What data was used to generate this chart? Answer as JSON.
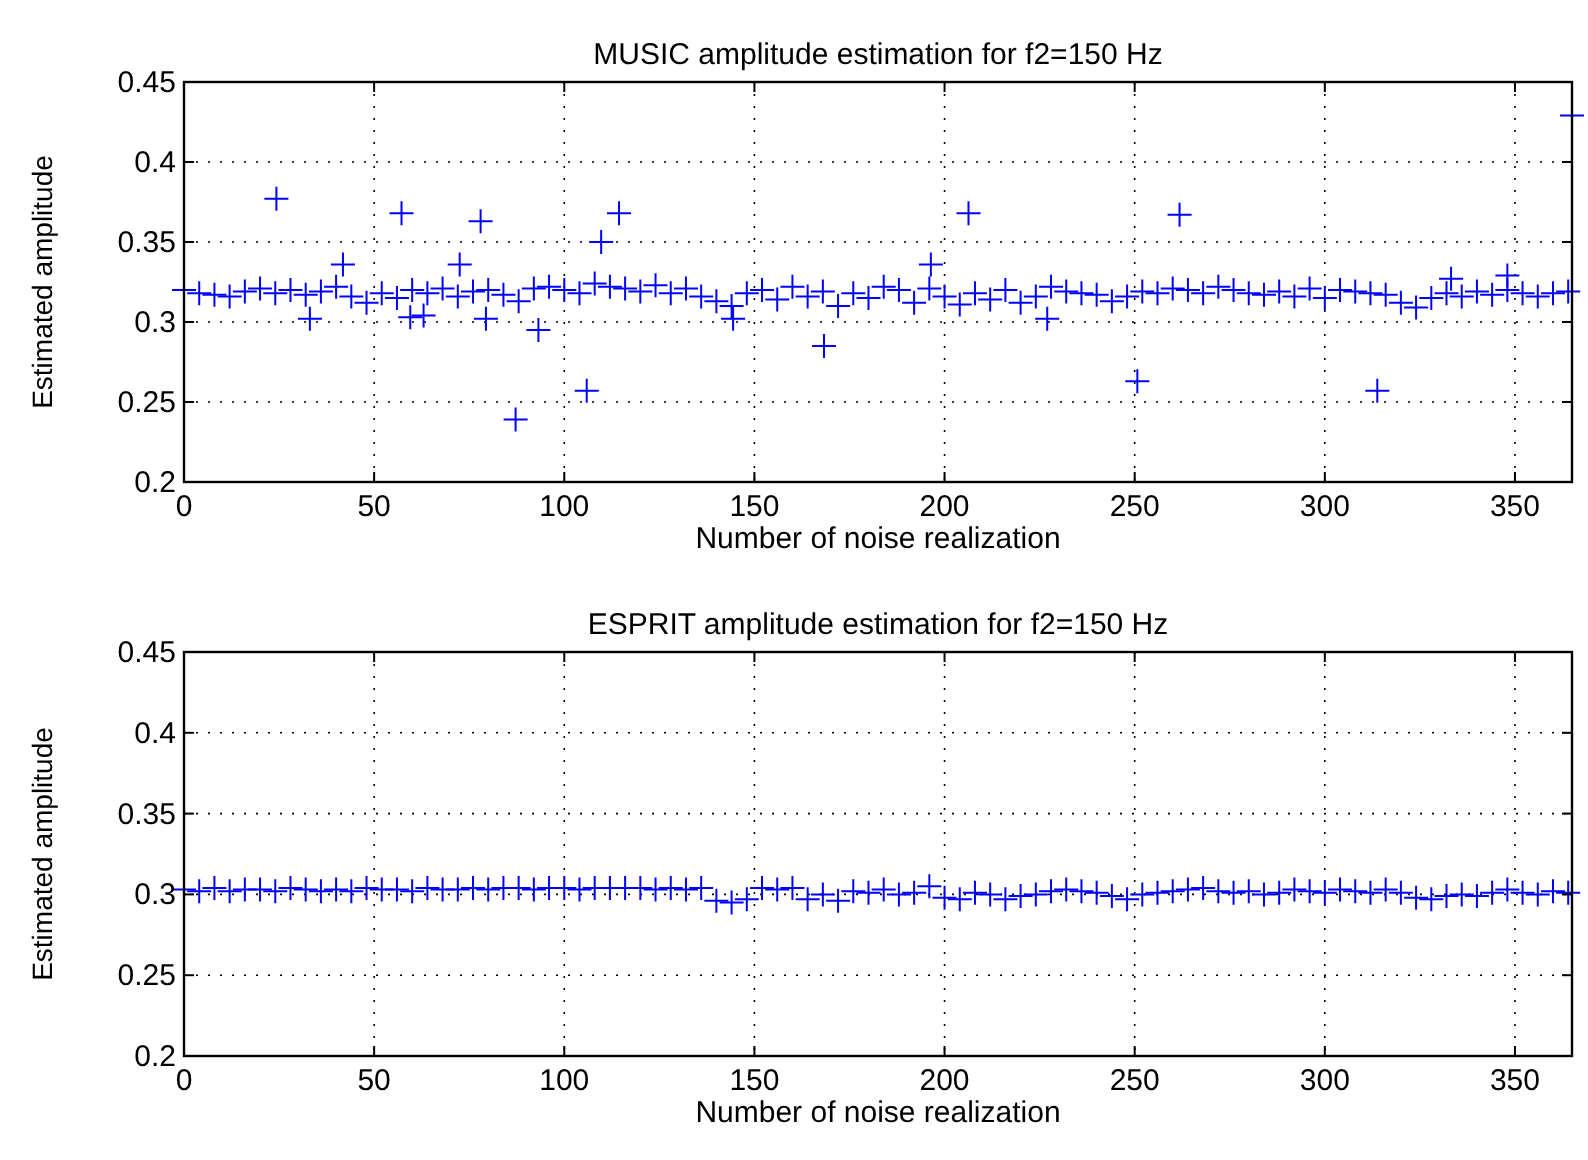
{
  "chart_data": [
    {
      "type": "scatter",
      "title": "MUSIC amplitude estimation for f2=150 Hz",
      "xlabel": "Number of noise realization",
      "ylabel": "Estimated amplitude",
      "xlim": [
        0,
        365
      ],
      "ylim": [
        0.2,
        0.45
      ],
      "xticks": [
        0,
        50,
        100,
        150,
        200,
        250,
        300,
        350
      ],
      "yticks": [
        0.2,
        0.25,
        0.3,
        0.35,
        0.4,
        0.45
      ],
      "grid": true,
      "marker": "cross",
      "series": [
        {
          "color": "#0000ff",
          "x": [
            0,
            4,
            8,
            12,
            16,
            20,
            24,
            28,
            32,
            36,
            40,
            44,
            48,
            52,
            56,
            60,
            64,
            68,
            72,
            76,
            80,
            84,
            88,
            92,
            96,
            100,
            104,
            108,
            112,
            116,
            120,
            124,
            128,
            132,
            136,
            140,
            144,
            148,
            152,
            156,
            160,
            164,
            168,
            172,
            176,
            180,
            184,
            188,
            192,
            196,
            200,
            204,
            208,
            212,
            216,
            220,
            224,
            228,
            232,
            236,
            240,
            244,
            248,
            252,
            256,
            260,
            264,
            268,
            272,
            276,
            280,
            284,
            288,
            292,
            296,
            300,
            304,
            308,
            312,
            316,
            320,
            324,
            328,
            332,
            336,
            340,
            344,
            348,
            352,
            356,
            360,
            364,
            24.3,
            33.1,
            57.2,
            78,
            87.2,
            93.2,
            105.9,
            109.7,
            114.4,
            168.3,
            144.4,
            79.4,
            59.5,
            63,
            41.8,
            72.5,
            206.3,
            261.8,
            250.7,
            313.8,
            196.4,
            348,
            333.2,
            227,
            365
          ],
          "values": [
            0.32,
            0.318,
            0.317,
            0.316,
            0.319,
            0.321,
            0.318,
            0.32,
            0.317,
            0.319,
            0.322,
            0.316,
            0.312,
            0.318,
            0.315,
            0.32,
            0.318,
            0.321,
            0.316,
            0.319,
            0.32,
            0.317,
            0.313,
            0.321,
            0.322,
            0.32,
            0.318,
            0.324,
            0.322,
            0.321,
            0.319,
            0.323,
            0.318,
            0.321,
            0.316,
            0.313,
            0.31,
            0.318,
            0.32,
            0.314,
            0.322,
            0.316,
            0.319,
            0.31,
            0.318,
            0.315,
            0.322,
            0.32,
            0.312,
            0.321,
            0.316,
            0.311,
            0.318,
            0.314,
            0.32,
            0.312,
            0.316,
            0.322,
            0.319,
            0.318,
            0.317,
            0.313,
            0.316,
            0.319,
            0.318,
            0.321,
            0.32,
            0.318,
            0.322,
            0.32,
            0.318,
            0.317,
            0.319,
            0.316,
            0.321,
            0.315,
            0.32,
            0.319,
            0.318,
            0.317,
            0.312,
            0.309,
            0.315,
            0.318,
            0.316,
            0.319,
            0.317,
            0.32,
            0.318,
            0.316,
            0.318,
            0.319,
            0.377,
            0.302,
            0.368,
            0.363,
            0.239,
            0.295,
            0.257,
            0.35,
            0.368,
            0.285,
            0.302,
            0.302,
            0.303,
            0.304,
            0.336,
            0.336,
            0.368,
            0.367,
            0.263,
            0.257,
            0.336,
            0.329,
            0.327,
            0.302,
            0.429
          ]
        }
      ]
    },
    {
      "type": "scatter",
      "title": "ESPRIT amplitude estimation for f2=150 Hz",
      "xlabel": "Number of noise realization",
      "ylabel": "Estimated amplitude",
      "xlim": [
        0,
        365
      ],
      "ylim": [
        0.2,
        0.45
      ],
      "xticks": [
        0,
        50,
        100,
        150,
        200,
        250,
        300,
        350
      ],
      "yticks": [
        0.2,
        0.25,
        0.3,
        0.35,
        0.4,
        0.45
      ],
      "grid": true,
      "marker": "cross",
      "series": [
        {
          "color": "#0000ff",
          "x": [
            0,
            4,
            8,
            12,
            16,
            20,
            24,
            28,
            32,
            36,
            40,
            44,
            48,
            52,
            56,
            60,
            64,
            68,
            72,
            76,
            80,
            84,
            88,
            92,
            96,
            100,
            104,
            108,
            112,
            116,
            120,
            124,
            128,
            132,
            136,
            140,
            144,
            148,
            152,
            156,
            160,
            164,
            168,
            172,
            176,
            180,
            184,
            188,
            192,
            196,
            200,
            204,
            208,
            212,
            216,
            220,
            224,
            228,
            232,
            236,
            240,
            244,
            248,
            252,
            256,
            260,
            264,
            268,
            272,
            276,
            280,
            284,
            288,
            292,
            296,
            300,
            304,
            308,
            312,
            316,
            320,
            324,
            328,
            332,
            336,
            340,
            344,
            348,
            352,
            356,
            360,
            364
          ],
          "values": [
            0.303,
            0.302,
            0.304,
            0.302,
            0.303,
            0.303,
            0.302,
            0.304,
            0.303,
            0.302,
            0.303,
            0.302,
            0.304,
            0.303,
            0.303,
            0.302,
            0.304,
            0.303,
            0.303,
            0.304,
            0.303,
            0.304,
            0.304,
            0.303,
            0.304,
            0.304,
            0.303,
            0.304,
            0.304,
            0.304,
            0.304,
            0.303,
            0.304,
            0.303,
            0.304,
            0.296,
            0.295,
            0.297,
            0.304,
            0.303,
            0.304,
            0.297,
            0.3,
            0.296,
            0.302,
            0.301,
            0.303,
            0.3,
            0.301,
            0.305,
            0.298,
            0.297,
            0.301,
            0.3,
            0.297,
            0.299,
            0.3,
            0.302,
            0.303,
            0.302,
            0.301,
            0.299,
            0.297,
            0.3,
            0.301,
            0.302,
            0.303,
            0.304,
            0.302,
            0.301,
            0.302,
            0.3,
            0.301,
            0.303,
            0.302,
            0.301,
            0.303,
            0.302,
            0.301,
            0.303,
            0.301,
            0.298,
            0.297,
            0.299,
            0.3,
            0.299,
            0.301,
            0.303,
            0.301,
            0.3,
            0.302,
            0.301
          ]
        }
      ]
    }
  ]
}
